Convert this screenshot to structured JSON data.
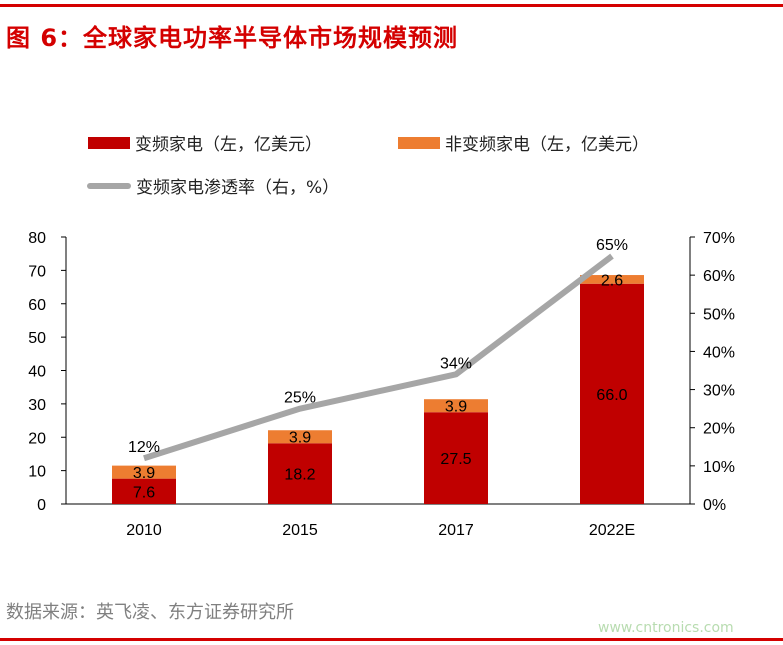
{
  "title": "图 6：全球家电功率半导体市场规模预测",
  "source": "数据来源：英飞凌、东方证券研究所",
  "watermark": "www.cntronics.com",
  "chart_data": {
    "type": "bar",
    "stacked": true,
    "categories": [
      "2010",
      "2015",
      "2017",
      "2022E"
    ],
    "series": [
      {
        "name": "变频家电（左，亿美元）",
        "values": [
          7.6,
          18.2,
          27.5,
          66.0
        ],
        "color": "#c00000",
        "axis": "left",
        "labels": [
          "7.6",
          "18.2",
          "27.5",
          "66.0"
        ]
      },
      {
        "name": "非变频家电（左，亿美元）",
        "values": [
          3.9,
          3.9,
          3.9,
          2.6
        ],
        "color": "#ed7d31",
        "axis": "left",
        "labels": [
          "3.9",
          "3.9",
          "3.9",
          "2.6"
        ]
      },
      {
        "name": "变频家电渗透率（右，%）",
        "type": "line",
        "values": [
          12,
          25,
          34,
          65
        ],
        "color": "#a6a6a6",
        "axis": "right",
        "labels": [
          "12%",
          "25%",
          "34%",
          "65%"
        ]
      }
    ],
    "ylim": [
      0,
      80
    ],
    "yticks": [
      "0",
      "10",
      "20",
      "30",
      "40",
      "50",
      "60",
      "70",
      "80"
    ],
    "y2lim": [
      0,
      70
    ],
    "y2ticks": [
      "0%",
      "10%",
      "20%",
      "30%",
      "40%",
      "50%",
      "60%",
      "70%"
    ],
    "grid": false,
    "legend": "top"
  }
}
